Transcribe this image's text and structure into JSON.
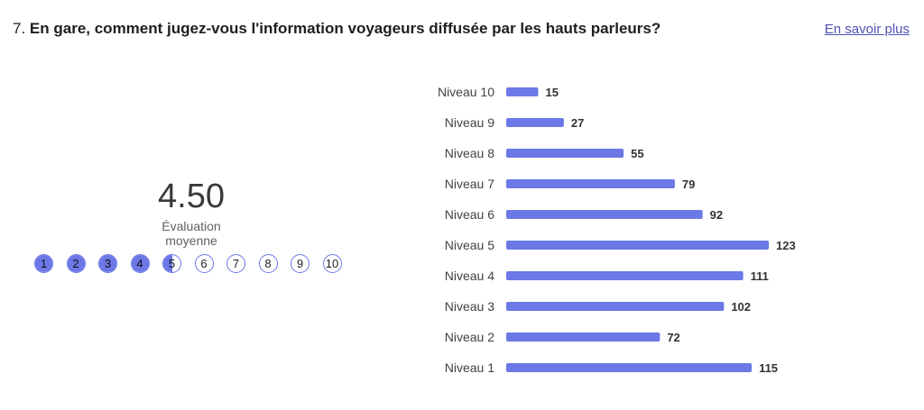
{
  "question": {
    "number": "7.",
    "text": "En gare, comment jugez-vous l'information voyageurs diffusée par les hauts parleurs?"
  },
  "learn_more": "En savoir plus",
  "rating": {
    "value": "4.50",
    "caption": "Évaluation moyenne",
    "scale": [
      "1",
      "2",
      "3",
      "4",
      "5",
      "6",
      "7",
      "8",
      "9",
      "10"
    ],
    "fill_level": 4.5
  },
  "colors": {
    "accent": "#6b78e6",
    "link": "#4f52b2"
  },
  "chart_data": {
    "type": "bar",
    "orientation": "horizontal",
    "categories": [
      "Niveau 10",
      "Niveau 9",
      "Niveau 8",
      "Niveau 7",
      "Niveau 6",
      "Niveau 5",
      "Niveau 4",
      "Niveau 3",
      "Niveau 2",
      "Niveau 1"
    ],
    "values": [
      15,
      27,
      55,
      79,
      92,
      123,
      111,
      102,
      72,
      115
    ],
    "xlim": [
      0,
      123
    ],
    "grid": false,
    "color": "#6b78e6"
  }
}
